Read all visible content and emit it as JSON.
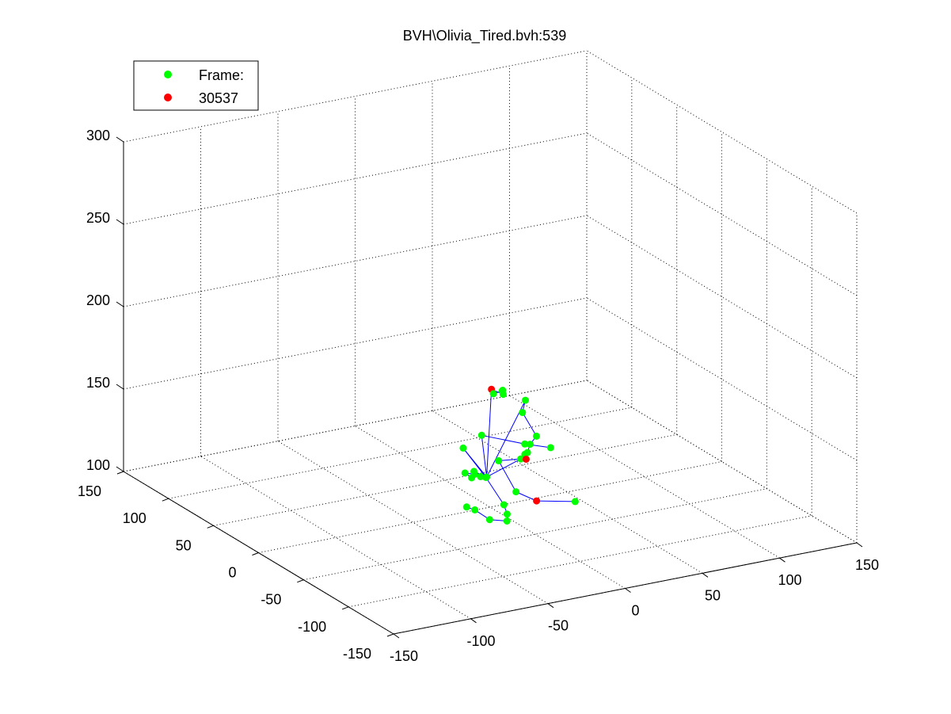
{
  "chart_data": {
    "type": "scatter",
    "title": "BVH\\Olivia_Tired.bvh:539",
    "xlabel": "",
    "ylabel": "",
    "zlabel": "",
    "xlim": [
      -150,
      150
    ],
    "ylim": [
      -150,
      150
    ],
    "zlim": [
      100,
      300
    ],
    "grid": true,
    "legend": {
      "placement": "top-left",
      "entries": [
        {
          "label": "Frame:",
          "color": "#00ff00"
        },
        {
          "label": "30537",
          "color": "#ff0000"
        }
      ]
    },
    "x_ticks": [
      "-150",
      "-100",
      "-50",
      "0",
      "50",
      "100",
      "150"
    ],
    "y_ticks": [
      "-150",
      "-100",
      "-50",
      "0",
      "50",
      "100",
      "150"
    ],
    "z_ticks": [
      "100",
      "150",
      "200",
      "250",
      "300"
    ],
    "joints": [
      {
        "x": -4,
        "y": -3,
        "z": 120,
        "color": "green"
      },
      {
        "x": -8,
        "y": -3,
        "z": 121,
        "color": "green"
      },
      {
        "x": -9,
        "y": 2,
        "z": 121,
        "color": "green"
      },
      {
        "x": -14,
        "y": 4,
        "z": 122,
        "color": "green"
      },
      {
        "x": -12,
        "y": 0,
        "z": 120,
        "color": "green"
      },
      {
        "x": -7,
        "y": 6,
        "z": 121,
        "color": "green"
      },
      {
        "x": 14,
        "y": -10,
        "z": 130,
        "color": "green"
      },
      {
        "x": -5,
        "y": -18,
        "z": 135,
        "color": "green"
      },
      {
        "x": 1,
        "y": -27,
        "z": 118,
        "color": "green"
      },
      {
        "x": 5,
        "y": -43,
        "z": 117,
        "color": "red"
      },
      {
        "x": 30,
        "y": -43,
        "z": 112,
        "color": "green"
      },
      {
        "x": 0,
        "y": 30,
        "z": 126,
        "color": "green"
      },
      {
        "x": 6,
        "y": 15,
        "z": 112,
        "color": "green"
      },
      {
        "x": 6,
        "y": -5,
        "z": 102,
        "color": "green"
      },
      {
        "x": 4,
        "y": -12,
        "z": 99,
        "color": "green"
      },
      {
        "x": 1,
        "y": -17,
        "z": 97,
        "color": "green"
      },
      {
        "x": -5,
        "y": -8,
        "z": 96,
        "color": "green"
      },
      {
        "x": -7,
        "y": 5,
        "z": 98,
        "color": "green"
      },
      {
        "x": -10,
        "y": 9,
        "z": 99,
        "color": "green"
      },
      {
        "x": -2,
        "y": 6,
        "z": 142,
        "color": "green"
      },
      {
        "x": 16,
        "y": -11,
        "z": 139,
        "color": "green"
      },
      {
        "x": 31,
        "y": -14,
        "z": 135,
        "color": "green"
      },
      {
        "x": 23,
        "y": 25,
        "z": 156,
        "color": "green"
      },
      {
        "x": 16,
        "y": 26,
        "z": 160,
        "color": "red"
      },
      {
        "x": 18,
        "y": 17,
        "z": 162,
        "color": "green"
      },
      {
        "x": 16,
        "y": 14,
        "z": 163,
        "color": "green"
      },
      {
        "x": 12,
        "y": 17,
        "z": 161,
        "color": "green"
      },
      {
        "x": 17,
        "y": -10,
        "z": 165,
        "color": "green"
      },
      {
        "x": 11,
        "y": -17,
        "z": 161,
        "color": "green"
      },
      {
        "x": 16,
        "y": -24,
        "z": 148,
        "color": "green"
      },
      {
        "x": 13,
        "y": -22,
        "z": 143,
        "color": "green"
      },
      {
        "x": 9,
        "y": -26,
        "z": 140,
        "color": "green"
      },
      {
        "x": 5,
        "y": -30,
        "z": 141,
        "color": "green"
      },
      {
        "x": 7,
        "y": -28,
        "z": 137,
        "color": "red"
      }
    ],
    "bones": [
      [
        0,
        6
      ],
      [
        6,
        7
      ],
      [
        7,
        8
      ],
      [
        8,
        9
      ],
      [
        9,
        10
      ],
      [
        0,
        11
      ],
      [
        11,
        12
      ],
      [
        12,
        13
      ],
      [
        0,
        19
      ],
      [
        19,
        20
      ],
      [
        20,
        21
      ],
      [
        0,
        23
      ],
      [
        23,
        22
      ],
      [
        22,
        24
      ],
      [
        24,
        25
      ],
      [
        25,
        26
      ],
      [
        0,
        27
      ],
      [
        27,
        28
      ],
      [
        28,
        29
      ],
      [
        29,
        30
      ],
      [
        30,
        31
      ],
      [
        31,
        32
      ],
      [
        32,
        33
      ],
      [
        0,
        1
      ],
      [
        1,
        2
      ],
      [
        2,
        3
      ],
      [
        3,
        4
      ],
      [
        0,
        5
      ],
      [
        13,
        14
      ],
      [
        14,
        15
      ],
      [
        15,
        16
      ],
      [
        16,
        17
      ],
      [
        17,
        18
      ]
    ]
  }
}
